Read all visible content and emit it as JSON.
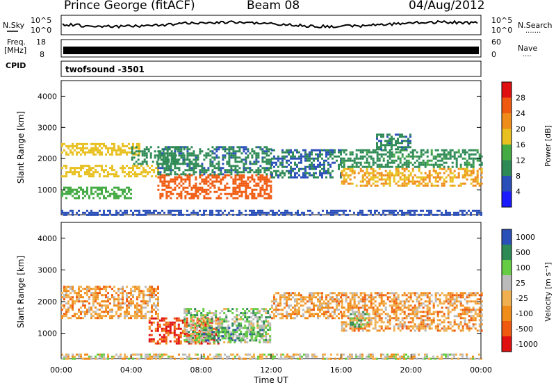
{
  "header": {
    "station": "Prince George (fitACF)",
    "beam": "Beam 08",
    "date": "04/Aug/2012"
  },
  "top_panels": {
    "nsky": {
      "left_label": "N.Sky",
      "right_label": "N.Search",
      "right_dots": "·······",
      "y_ticks_left": [
        "10^5",
        "10^0"
      ],
      "y_ticks_right": [
        "10^5",
        "10^0"
      ]
    },
    "freq": {
      "left_label_1": "Freq.",
      "left_label_2": "[MHz]",
      "right_label": "Nave",
      "right_dots": "····",
      "y_ticks_left": [
        "18",
        "8"
      ],
      "y_ticks_right": [
        "60",
        "0"
      ]
    },
    "cpid": {
      "label": "CPID",
      "program": "twofsound  -3501"
    }
  },
  "x_axis": {
    "title": "Time UT",
    "ticks": [
      "00:00",
      "04:00",
      "08:00",
      "12:00",
      "16:00",
      "20:00",
      "00:00"
    ]
  },
  "colors": {
    "power": [
      "#1a1aff",
      "#2a4fb8",
      "#2e8a55",
      "#44aa44",
      "#e8c020",
      "#f08c1a",
      "#f05a10",
      "#e01010"
    ],
    "velocity": [
      "#e01010",
      "#f05a10",
      "#f08c1a",
      "#f0b050",
      "#bbbbbb",
      "#66cc44",
      "#2e8a55",
      "#2a4fb8"
    ]
  },
  "chart_data": [
    {
      "type": "heatmap",
      "name": "power",
      "ylabel": "Slant Range [km]",
      "yticks": [
        "4000",
        "3000",
        "2000",
        "1000"
      ],
      "ylim": [
        200,
        4500
      ],
      "xlim": [
        0,
        24
      ],
      "colorbar": {
        "label": "Power [dB]",
        "ticks": [
          "28",
          "24",
          "20",
          "16",
          "12",
          "8",
          "4"
        ],
        "range": [
          0,
          32
        ]
      },
      "regions": [
        {
          "t0": 0.0,
          "t1": 24.0,
          "r0": 220,
          "r1": 360,
          "value": 6
        },
        {
          "t0": 0.0,
          "t1": 4.5,
          "r0": 2100,
          "r1": 2500,
          "value": 18
        },
        {
          "t0": 0.0,
          "t1": 5.5,
          "r0": 1450,
          "r1": 1800,
          "value": 18
        },
        {
          "t0": 0.0,
          "t1": 4.0,
          "r0": 750,
          "r1": 1100,
          "value": 14
        },
        {
          "t0": 4.0,
          "t1": 7.0,
          "r0": 1800,
          "r1": 2400,
          "value": 10
        },
        {
          "t0": 5.5,
          "t1": 12.0,
          "r0": 700,
          "r1": 1500,
          "value": 26
        },
        {
          "t0": 5.5,
          "t1": 12.0,
          "r0": 1500,
          "r1": 2400,
          "value": 9
        },
        {
          "t0": 12.0,
          "t1": 16.0,
          "r0": 1400,
          "r1": 2300,
          "value": 8
        },
        {
          "t0": 16.0,
          "t1": 24.0,
          "r0": 1100,
          "r1": 1700,
          "value": 20
        },
        {
          "t0": 16.0,
          "t1": 24.0,
          "r0": 1700,
          "r1": 2300,
          "value": 11
        },
        {
          "t0": 18.0,
          "t1": 20.0,
          "r0": 2300,
          "r1": 2800,
          "value": 9
        }
      ]
    },
    {
      "type": "heatmap",
      "name": "velocity",
      "ylabel": "Slant Range [km]",
      "yticks": [
        "4000",
        "3000",
        "2000",
        "1000"
      ],
      "ylim": [
        200,
        4500
      ],
      "xlim": [
        0,
        24
      ],
      "colorbar": {
        "label": "Velocity [m s⁻¹]",
        "ticks": [
          "1000",
          "500",
          "100",
          "25",
          "-25",
          "-100",
          "-500",
          "-1000"
        ]
      },
      "regions": [
        {
          "t0": 0.0,
          "t1": 24.0,
          "r0": 220,
          "r1": 360,
          "value": 4
        },
        {
          "t0": 0.0,
          "t1": 5.5,
          "r0": 1500,
          "r1": 2500,
          "value": 3
        },
        {
          "t0": 5.0,
          "t1": 9.0,
          "r0": 700,
          "r1": 1500,
          "value": 1
        },
        {
          "t0": 7.0,
          "t1": 12.0,
          "r0": 700,
          "r1": 1800,
          "value": 5
        },
        {
          "t0": 8.0,
          "t1": 11.5,
          "r0": 800,
          "r1": 1200,
          "value": 6
        },
        {
          "t0": 12.0,
          "t1": 16.0,
          "r0": 1500,
          "r1": 2300,
          "value": 3
        },
        {
          "t0": 16.0,
          "t1": 24.0,
          "r0": 1100,
          "r1": 2300,
          "value": 3
        },
        {
          "t0": 16.5,
          "t1": 17.5,
          "r0": 1200,
          "r1": 1700,
          "value": 5
        }
      ]
    }
  ]
}
